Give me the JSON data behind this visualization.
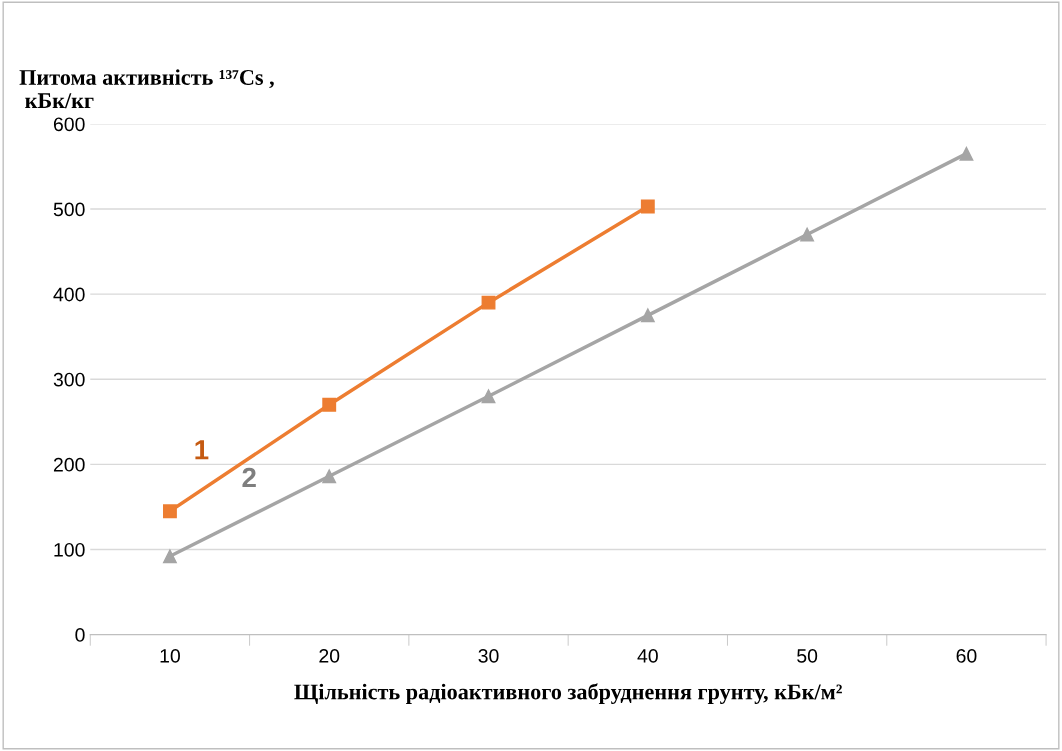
{
  "chart_data": {
    "type": "line",
    "ylabel": "Питома активність ¹³⁷Cs ,\n кБк/кг",
    "xlabel": "Щільність радіоактивного забруднення грунту, кБк/м²",
    "categories": [
      "10",
      "20",
      "30",
      "40",
      "50",
      "60"
    ],
    "series": [
      {
        "name": "1",
        "color": "#ed7d31",
        "marker": "square",
        "values": [
          145,
          270,
          390,
          503,
          null,
          null
        ]
      },
      {
        "name": "2",
        "color": "#a5a5a5",
        "marker": "triangle",
        "values": [
          92,
          186,
          280,
          375,
          470,
          565
        ]
      }
    ],
    "ylim": [
      0,
      600
    ],
    "yticks": [
      0,
      100,
      200,
      300,
      400,
      500,
      600
    ],
    "grid": "y",
    "legend": false,
    "line_style": "solid"
  }
}
